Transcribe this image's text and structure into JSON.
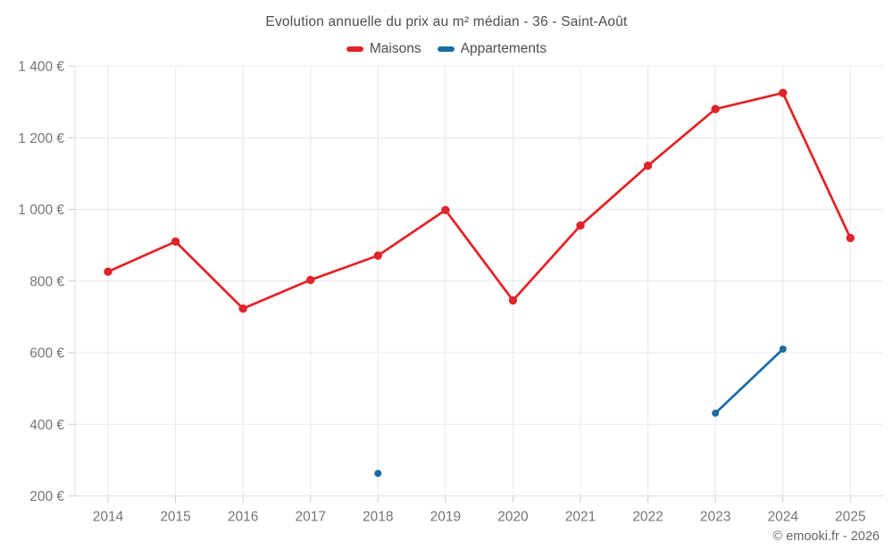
{
  "title": "Evolution annuelle du prix au m² médian - 36 - Saint-Août",
  "footer": {
    "copyright": "© emooki.fr - 2026"
  },
  "colors": {
    "maisons": "#e02429",
    "appartements": "#1b6ca3",
    "gridline": "#e8e8e8",
    "axis_line": "#dedede",
    "tick": "#cccccc",
    "axis_text": "#757575",
    "title_text": "#4d4d4d"
  },
  "chart_data": {
    "type": "line",
    "title": "Evolution annuelle du prix au m² médian - 36 - Saint-Août",
    "x": [
      2014,
      2015,
      2016,
      2017,
      2018,
      2019,
      2020,
      2021,
      2022,
      2023,
      2024,
      2025
    ],
    "series": [
      {
        "name": "Maisons",
        "color": "#e02429",
        "values": [
          826,
          910,
          723,
          803,
          871,
          998,
          746,
          955,
          1122,
          1280,
          1325,
          920
        ]
      },
      {
        "name": "Appartements",
        "color": "#1b6ca3",
        "values": [
          null,
          null,
          null,
          null,
          263,
          null,
          null,
          null,
          null,
          431,
          610,
          null
        ]
      }
    ],
    "xlabel": "",
    "ylabel": "",
    "ylim": [
      200,
      1400
    ],
    "y_ticks": [
      200,
      400,
      600,
      800,
      1000,
      1200,
      1400
    ],
    "y_tick_labels": [
      "200 €",
      "400 €",
      "600 €",
      "800 €",
      "1 000 €",
      "1 200 €",
      "1 400 €"
    ],
    "grid": true,
    "legend_position": "top"
  }
}
